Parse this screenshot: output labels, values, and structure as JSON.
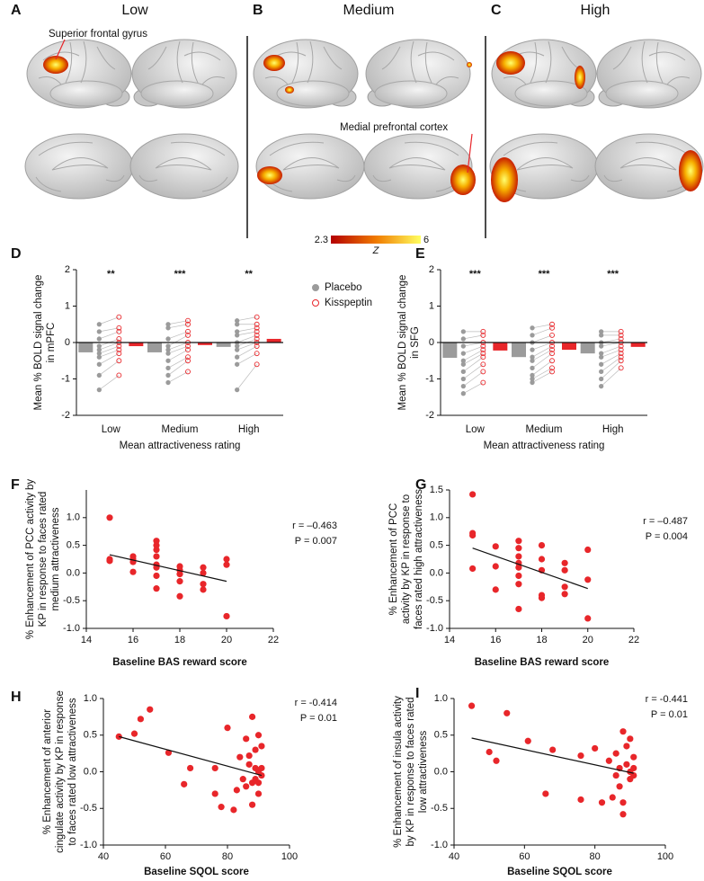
{
  "panels_top": [
    {
      "letter": "A",
      "title": "Low"
    },
    {
      "letter": "B",
      "title": "Medium"
    },
    {
      "letter": "C",
      "title": "High"
    }
  ],
  "annotations": [
    "Superior frontal gyrus",
    "Medial prefrontal cortex"
  ],
  "colorbar": {
    "lim": [
      2.3,
      6
    ],
    "ticks": [
      2.3,
      6
    ],
    "label": "Z"
  },
  "chart_data": [
    {
      "type": "paired_bar",
      "panel_label": "D",
      "categories": [
        "Low",
        "Medium",
        "High"
      ],
      "series": [
        {
          "name": "Placebo",
          "color": "#9b9b9b",
          "values": [
            -0.27,
            -0.27,
            -0.12
          ],
          "points": [
            [
              0.5,
              0.3,
              0.1,
              -0.1,
              -0.2,
              -0.3,
              -0.4,
              -0.6,
              -0.9,
              -1.3
            ],
            [
              0.5,
              0.4,
              0.1,
              -0.1,
              -0.2,
              -0.3,
              -0.5,
              -0.7,
              -0.9,
              -1.1
            ],
            [
              0.6,
              0.5,
              0.3,
              0.2,
              0,
              -0.1,
              -0.2,
              -0.4,
              -0.6,
              -1.3
            ]
          ]
        },
        {
          "name": "Kisspeptin",
          "color": "#e8262a",
          "values": [
            -0.1,
            -0.07,
            0.1
          ],
          "points": [
            [
              0.7,
              0.4,
              0.3,
              0.1,
              0,
              -0.1,
              -0.2,
              -0.3,
              -0.5,
              -0.9
            ],
            [
              0.6,
              0.5,
              0.3,
              0.2,
              0,
              -0.1,
              -0.2,
              -0.4,
              -0.5,
              -0.8
            ],
            [
              0.7,
              0.5,
              0.4,
              0.3,
              0.2,
              0.1,
              0,
              -0.1,
              -0.3,
              -0.6
            ]
          ]
        }
      ],
      "significance": [
        "**",
        "***",
        "**"
      ],
      "ylim": [
        -2,
        2
      ],
      "yticks": [
        -2,
        -1,
        0,
        1,
        2
      ],
      "ylabel": [
        "Mean % BOLD signal change",
        "in mPFC"
      ],
      "xlabel": "Mean attractiveness rating",
      "legend": true
    },
    {
      "type": "paired_bar",
      "panel_label": "E",
      "categories": [
        "Low",
        "Medium",
        "High"
      ],
      "series": [
        {
          "name": "Placebo",
          "color": "#9b9b9b",
          "values": [
            -0.42,
            -0.4,
            -0.3
          ],
          "points": [
            [
              0.3,
              0.1,
              -0.1,
              -0.3,
              -0.5,
              -0.6,
              -0.8,
              -1,
              -1.2,
              -1.4
            ],
            [
              0.4,
              0.2,
              0,
              -0.2,
              -0.4,
              -0.5,
              -0.7,
              -0.9,
              -1,
              -1.1
            ],
            [
              0.3,
              0.2,
              0,
              -0.1,
              -0.3,
              -0.4,
              -0.6,
              -0.8,
              -1,
              -1.2
            ]
          ]
        },
        {
          "name": "Kisspeptin",
          "color": "#e8262a",
          "values": [
            -0.22,
            -0.2,
            -0.12
          ],
          "points": [
            [
              0.3,
              0.2,
              0,
              -0.1,
              -0.2,
              -0.3,
              -0.4,
              -0.6,
              -0.8,
              -1.1
            ],
            [
              0.5,
              0.4,
              0.2,
              0,
              -0.1,
              -0.2,
              -0.3,
              -0.5,
              -0.7,
              -0.8
            ],
            [
              0.3,
              0.2,
              0.1,
              0,
              -0.1,
              -0.2,
              -0.3,
              -0.4,
              -0.5,
              -0.7
            ]
          ]
        }
      ],
      "significance": [
        "***",
        "***",
        "***"
      ],
      "ylim": [
        -2,
        2
      ],
      "yticks": [
        -2,
        -1,
        0,
        1,
        2
      ],
      "ylabel": [
        "Mean % BOLD signal change",
        "in SFG"
      ],
      "xlabel": "Mean attractiveness rating",
      "legend": false
    },
    {
      "type": "scatter",
      "panel_label": "F",
      "color": "#e8262a",
      "x": [
        15,
        15,
        15,
        16,
        16,
        16,
        16,
        17,
        17,
        17,
        17,
        17,
        17,
        17,
        17,
        18,
        18,
        18,
        18,
        18,
        19,
        19,
        19,
        19,
        20,
        20,
        20
      ],
      "y": [
        1.0,
        0.25,
        0.22,
        0.3,
        0.25,
        0.2,
        0.02,
        0.58,
        0.5,
        0.42,
        0.3,
        0.15,
        0.1,
        -0.05,
        -0.28,
        0.12,
        0.05,
        -0.02,
        -0.15,
        -0.42,
        0.1,
        0,
        -0.2,
        -0.3,
        0.25,
        0.15,
        -0.78
      ],
      "fit": {
        "x": [
          15,
          20
        ],
        "y": [
          0.33,
          -0.15
        ]
      },
      "xlim": [
        14,
        22
      ],
      "xticks": [
        14,
        16,
        18,
        20,
        22
      ],
      "ylim": [
        -1,
        1.5
      ],
      "yticks": [
        {
          "value": -1,
          "label": "-1.0"
        },
        -0.5,
        {
          "value": 0,
          "label": "0.0"
        },
        0.5,
        {
          "value": 1,
          "label": "1.0"
        }
      ],
      "ylabel": [
        "% Enhancement of PCC activity by",
        "KP in response to faces rated",
        "medium attractiveness"
      ],
      "xlabel": "Baseline BAS reward score",
      "stats": [
        "r = –0.463",
        "P = 0.007"
      ]
    },
    {
      "type": "scatter",
      "panel_label": "G",
      "color": "#e8262a",
      "x": [
        15,
        15,
        15,
        15,
        16,
        16,
        16,
        17,
        17,
        17,
        17,
        17,
        17,
        17,
        17,
        18,
        18,
        18,
        18,
        18,
        19,
        19,
        19,
        19,
        20,
        20,
        20
      ],
      "y": [
        1.42,
        0.72,
        0.68,
        0.08,
        0.48,
        0.12,
        -0.3,
        0.58,
        0.45,
        0.3,
        0.18,
        0.1,
        -0.05,
        -0.2,
        -0.65,
        0.5,
        0.25,
        0.05,
        -0.4,
        -0.45,
        0.18,
        0.05,
        -0.25,
        -0.38,
        0.42,
        -0.12,
        -0.82
      ],
      "fit": {
        "x": [
          15,
          20
        ],
        "y": [
          0.45,
          -0.28
        ]
      },
      "xlim": [
        14,
        22
      ],
      "xticks": [
        14,
        16,
        18,
        20,
        22
      ],
      "ylim": [
        -1,
        1.5
      ],
      "yticks": [
        {
          "value": -1,
          "label": "-1.0"
        },
        -0.5,
        {
          "value": 0,
          "label": "0.0"
        },
        0.5,
        {
          "value": 1,
          "label": "1.0"
        },
        1.5
      ],
      "ylabel": [
        "% Enhancement of PCC",
        "activity by KP in response to",
        "faces rated high attractiveness"
      ],
      "xlabel": "Baseline BAS reward score",
      "stats": [
        "r = –0.487",
        "P = 0.004"
      ]
    },
    {
      "type": "scatter",
      "panel_label": "H",
      "color": "#e8262a",
      "x": [
        45,
        50,
        52,
        55,
        61,
        66,
        68,
        76,
        76,
        78,
        80,
        82,
        83,
        84,
        85,
        86,
        86,
        87,
        87,
        88,
        88,
        88,
        89,
        89,
        89,
        90,
        90,
        90,
        91,
        91,
        91,
        90
      ],
      "y": [
        0.48,
        0.52,
        0.72,
        0.85,
        0.26,
        -0.17,
        0.05,
        0.05,
        -0.3,
        -0.48,
        0.6,
        -0.52,
        -0.25,
        0.2,
        -0.1,
        0.45,
        -0.2,
        0.22,
        0.1,
        0.75,
        -0.15,
        -0.45,
        0.3,
        0.05,
        -0.1,
        0.5,
        0,
        -0.3,
        0.05,
        -0.05,
        0.35,
        -0.15
      ],
      "fit": {
        "x": [
          45,
          91
        ],
        "y": [
          0.48,
          -0.05
        ]
      },
      "xlim": [
        40,
        100
      ],
      "xticks": [
        40,
        60,
        80,
        100
      ],
      "ylim": [
        -1,
        1
      ],
      "yticks": [
        {
          "value": -1,
          "label": "-1.0"
        },
        -0.5,
        {
          "value": 0,
          "label": "0.0"
        },
        0.5,
        {
          "value": 1,
          "label": "1.0"
        }
      ],
      "ylabel": [
        "% Enhancement of anterior",
        "cingulate activity by KP in response",
        "to faces rated low attractiveness"
      ],
      "xlabel": "Baseline SQOL score",
      "stats": [
        "r = -0.414",
        "P = 0.01"
      ]
    },
    {
      "type": "scatter",
      "panel_label": "I",
      "color": "#e8262a",
      "x": [
        45,
        50,
        52,
        55,
        61,
        66,
        68,
        76,
        76,
        80,
        82,
        84,
        85,
        86,
        86,
        87,
        87,
        88,
        88,
        88,
        89,
        89,
        90,
        90,
        90,
        91,
        91,
        91
      ],
      "y": [
        0.9,
        0.27,
        0.15,
        0.8,
        0.42,
        -0.3,
        0.3,
        -0.38,
        0.22,
        0.32,
        -0.42,
        0.15,
        -0.35,
        0.25,
        -0.05,
        -0.2,
        0.05,
        0.55,
        -0.42,
        -0.58,
        0.35,
        0.1,
        0.45,
        0,
        -0.1,
        0.2,
        0.05,
        -0.05
      ],
      "fit": {
        "x": [
          45,
          91
        ],
        "y": [
          0.46,
          -0.02
        ]
      },
      "xlim": [
        40,
        100
      ],
      "xticks": [
        40,
        60,
        80,
        100
      ],
      "ylim": [
        -1,
        1
      ],
      "yticks": [
        {
          "value": -1,
          "label": "-1.0"
        },
        -0.5,
        {
          "value": 0,
          "label": "0.0"
        },
        0.5,
        {
          "value": 1,
          "label": "1.0"
        }
      ],
      "ylabel": [
        "% Enhancement of insula activity",
        "by KP in response to faces rated",
        "low attractiveness"
      ],
      "xlabel": "Baseline SQOL score",
      "stats": [
        "r = -0.441",
        "P = 0.01"
      ]
    }
  ]
}
